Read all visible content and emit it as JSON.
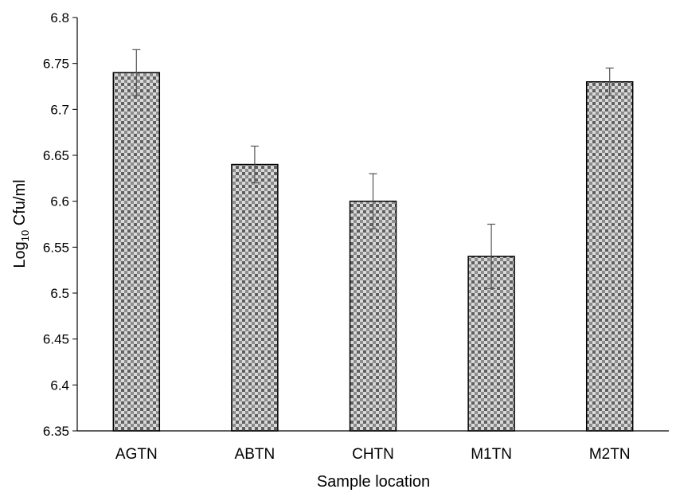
{
  "chart_data": {
    "type": "bar",
    "title": "",
    "xlabel": "Sample location",
    "ylabel": {
      "prefix": "Log",
      "subscript": "10",
      "suffix": " Cfu/ml"
    },
    "categories": [
      "AGTN",
      "ABTN",
      "CHTN",
      "M1TN",
      "M2TN"
    ],
    "values": [
      6.74,
      6.64,
      6.6,
      6.54,
      6.73
    ],
    "error_lower": [
      6.715,
      6.62,
      6.57,
      6.505,
      6.715
    ],
    "error_upper": [
      6.765,
      6.66,
      6.63,
      6.575,
      6.745
    ],
    "ylim": [
      6.35,
      6.8
    ],
    "yticks": [
      6.35,
      6.4,
      6.45,
      6.5,
      6.55,
      6.6,
      6.65,
      6.7,
      6.75,
      6.8
    ],
    "ytick_labels": [
      "6.35",
      "6.4",
      "6.45",
      "6.5",
      "6.55",
      "6.6",
      "6.65",
      "6.7",
      "6.75",
      "6.8"
    ],
    "grid": false,
    "legend": "none",
    "bar_pattern": "checkered gray"
  }
}
